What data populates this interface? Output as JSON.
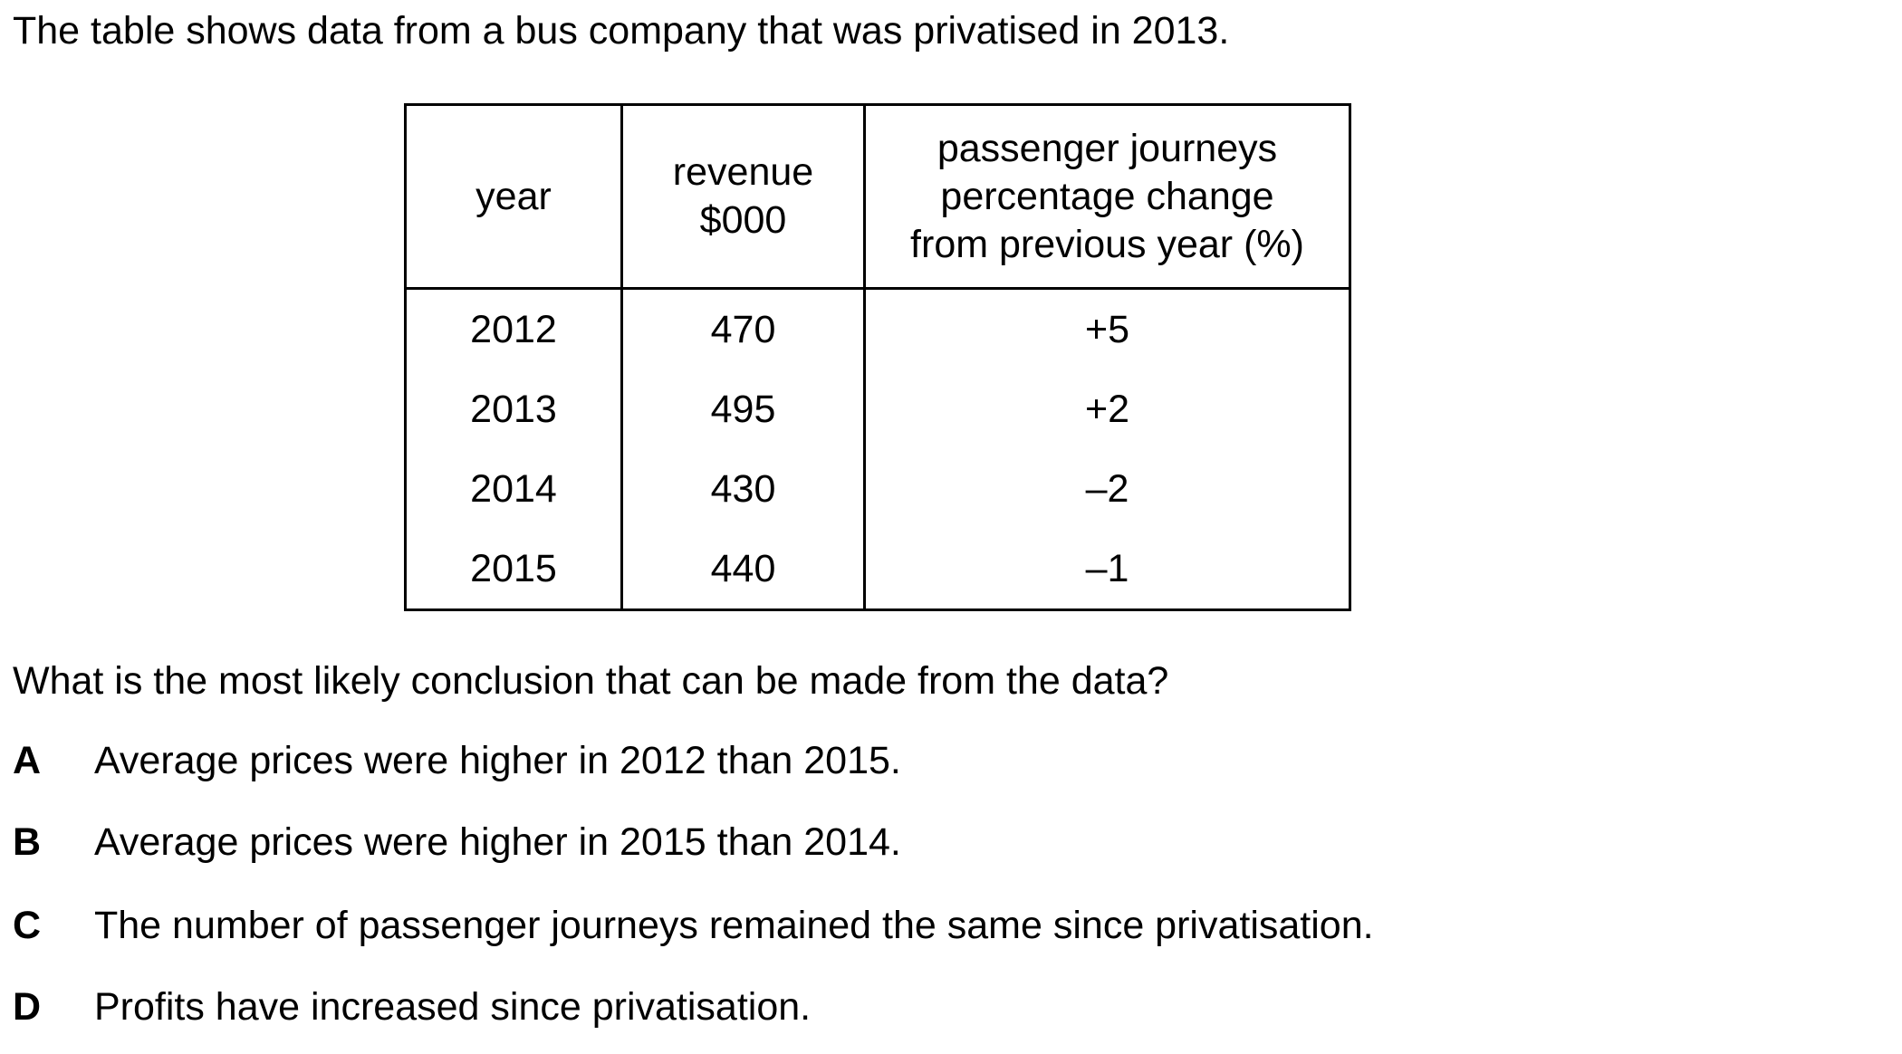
{
  "intro": "The table shows data from a bus company that was privatised in 2013.",
  "table": {
    "headers": {
      "year": "year",
      "revenue_line1": "revenue",
      "revenue_line2": "$000",
      "journeys_line1": "passenger journeys",
      "journeys_line2": "percentage change",
      "journeys_line3": "from previous year (%)"
    },
    "rows": [
      {
        "year": "2012",
        "revenue": "470",
        "change": "+5"
      },
      {
        "year": "2013",
        "revenue": "495",
        "change": "+2"
      },
      {
        "year": "2014",
        "revenue": "430",
        "change": "–2"
      },
      {
        "year": "2015",
        "revenue": "440",
        "change": "–1"
      }
    ]
  },
  "question": "What is the most likely conclusion that can be made from the data?",
  "options": [
    {
      "letter": "A",
      "text": "Average prices were higher in 2012 than 2015."
    },
    {
      "letter": "B",
      "text": "Average prices were higher in 2015 than 2014."
    },
    {
      "letter": "C",
      "text": "The number of passenger journeys remained the same since privatisation."
    },
    {
      "letter": "D",
      "text": "Profits have increased since privatisation."
    }
  ]
}
